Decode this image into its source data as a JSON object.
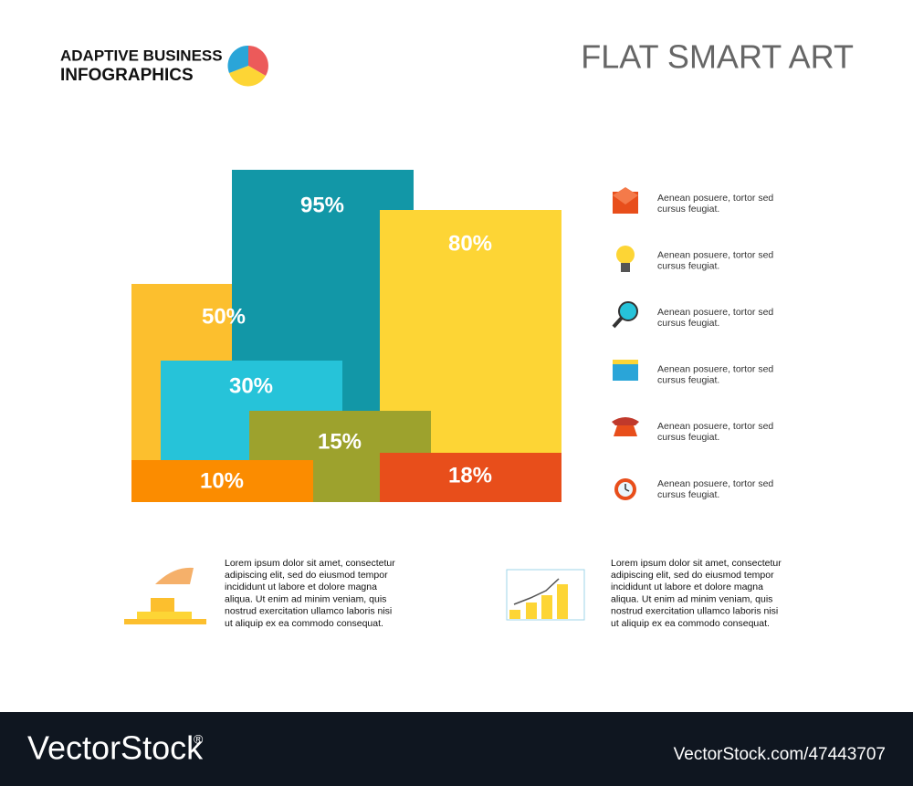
{
  "header": {
    "brand_line1": "ADAPTIVE BUSINESS",
    "brand_line2": "INFOGRAPHICS",
    "title": "FLAT SMART ART"
  },
  "blocks": [
    {
      "label": "50%",
      "color": "#fcbf2e"
    },
    {
      "label": "95%",
      "color": "#1297a7"
    },
    {
      "label": "80%",
      "color": "#fdd535"
    },
    {
      "label": "30%",
      "color": "#26c3d9"
    },
    {
      "label": "15%",
      "color": "#9da22d"
    },
    {
      "label": "10%",
      "color": "#fb8c00"
    },
    {
      "label": "18%",
      "color": "#e84e1b"
    }
  ],
  "legend": [
    {
      "lines": [
        "Aenean posuere, tortor sed",
        "cursus feugiat."
      ]
    },
    {
      "lines": [
        "Aenean posuere, tortor sed",
        "cursus feugiat."
      ]
    },
    {
      "lines": [
        "Aenean posuere, tortor sed",
        "cursus feugiat."
      ]
    },
    {
      "lines": [
        "Aenean posuere, tortor sed",
        "cursus feugiat."
      ]
    },
    {
      "lines": [
        "Aenean posuere, tortor sed",
        "cursus feugiat."
      ]
    },
    {
      "lines": [
        "Aenean posuere, tortor sed",
        "cursus feugiat."
      ]
    }
  ],
  "notes": [
    {
      "lines": [
        "Lorem ipsum dolor sit amet, consectetur",
        "adipiscing elit, sed do eiusmod tempor",
        "incididunt ut labore et dolore magna",
        "aliqua. Ut enim ad minim veniam, quis",
        "nostrud exercitation ullamco laboris nisi",
        "ut aliquip ex ea commodo consequat."
      ]
    },
    {
      "lines": [
        "Lorem ipsum dolor sit amet, consectetur",
        "adipiscing elit, sed do eiusmod tempor",
        "incididunt ut labore et dolore magna",
        "aliqua. Ut enim ad minim veniam, quis",
        "nostrud exercitation ullamco laboris nisi",
        "ut aliquip ex ea commodo consequat."
      ]
    }
  ],
  "footer": {
    "brand": "VectorStock",
    "mark": "®",
    "id": "VectorStock.com/47443707"
  }
}
